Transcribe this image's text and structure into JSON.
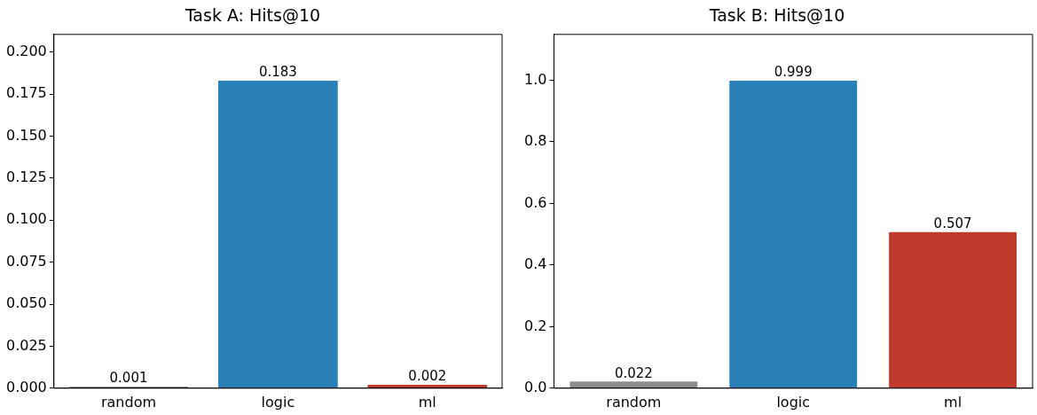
{
  "chart_data": [
    {
      "type": "bar",
      "title": "Task A: Hits@10",
      "categories": [
        "random",
        "logic",
        "ml"
      ],
      "values": [
        0.001,
        0.183,
        0.002
      ],
      "colors": [
        "#8c8c8c",
        "#2980b9",
        "#c0392b"
      ],
      "ylim": [
        0,
        0.2105
      ],
      "yticks": [
        {
          "value": 0,
          "label": "0.000"
        },
        0.025,
        {
          "value": 0.05,
          "label": "0.050"
        },
        0.075,
        {
          "value": 0.1,
          "label": "0.100"
        },
        0.125,
        {
          "value": 0.15,
          "label": "0.150"
        },
        0.175,
        {
          "value": 0.2,
          "label": "0.200"
        }
      ],
      "data_labels": true,
      "grid": false,
      "legend": false
    },
    {
      "type": "bar",
      "title": "Task B: Hits@10",
      "categories": [
        "random",
        "logic",
        "ml"
      ],
      "values": [
        0.022,
        0.999,
        0.507
      ],
      "colors": [
        "#8c8c8c",
        "#2980b9",
        "#c0392b"
      ],
      "ylim": [
        0,
        1.149
      ],
      "yticks": [
        {
          "value": 0,
          "label": "0.0"
        },
        0.2,
        0.4,
        0.6,
        0.8,
        {
          "value": 1,
          "label": "1.0"
        }
      ],
      "data_labels": true,
      "grid": false,
      "legend": false
    }
  ]
}
